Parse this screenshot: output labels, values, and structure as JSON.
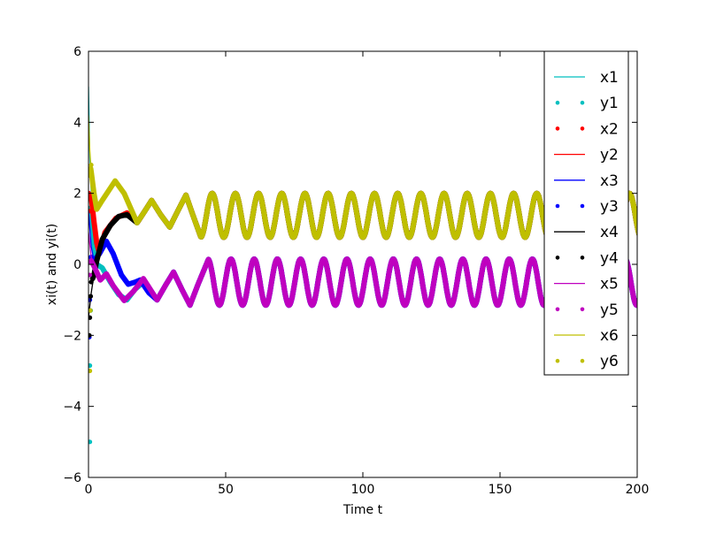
{
  "chart_data": {
    "type": "line",
    "title": "",
    "xlabel": "Time t",
    "ylabel": "xi(t) and yi(t)",
    "xlim": [
      0,
      200
    ],
    "ylim": [
      -6,
      6
    ],
    "xticks": [
      0,
      50,
      100,
      150,
      200
    ],
    "yticks": [
      -6,
      -4,
      -2,
      0,
      2,
      4,
      6
    ],
    "xtick_labels": [
      "0",
      "50",
      "100",
      "150",
      "200"
    ],
    "ytick_labels": [
      "−6",
      "−4",
      "−2",
      "0",
      "2",
      "4",
      "6"
    ],
    "grid": false,
    "legend_position": "top-right",
    "clusters": {
      "M": {
        "points": [
          [
            25,
            -1.0
          ],
          [
            28,
            -0.6
          ],
          [
            31,
            -0.22
          ],
          [
            34,
            -0.7
          ],
          [
            37,
            -1.15
          ],
          [
            40,
            -0.55
          ],
          [
            43.5,
            0.1
          ]
        ],
        "steady": {
          "mean": -0.5,
          "amplitude": 0.65,
          "period": 8.45,
          "peak_t": 43.5
        }
      },
      "Y": {
        "points": [
          [
            23,
            1.8
          ],
          [
            26.3,
            1.4
          ],
          [
            29.6,
            1.05
          ],
          [
            32.5,
            1.5
          ],
          [
            35.5,
            1.95
          ],
          [
            38,
            1.4
          ],
          [
            40.9,
            0.78
          ]
        ],
        "steady": {
          "mean": 1.38,
          "amplitude": 0.62,
          "period": 8.45,
          "peak_t": 45.1
        }
      }
    },
    "series": [
      {
        "name": "x1",
        "style": "line",
        "color": "#00bfbf",
        "cluster": "M",
        "points": [
          [
            0,
            5
          ],
          [
            0.5,
            3
          ],
          [
            1,
            2
          ],
          [
            2,
            0.8
          ],
          [
            3,
            0.1
          ],
          [
            5,
            -0.1
          ],
          [
            8,
            -0.5
          ],
          [
            11,
            -0.85
          ],
          [
            14,
            -1.0
          ],
          [
            17,
            -0.7
          ],
          [
            20,
            -0.5
          ],
          [
            25,
            -1.0
          ]
        ]
      },
      {
        "name": "y1",
        "style": "dots",
        "color": "#00bfbf",
        "cluster": "M",
        "initial": [
          [
            0.5,
            -5
          ],
          [
            0.5,
            -2.85
          ],
          [
            0.8,
            -1.3
          ]
        ],
        "points": [
          [
            1,
            1.6
          ],
          [
            2,
            0.6
          ],
          [
            3,
            0.0
          ],
          [
            5,
            -0.1
          ],
          [
            8,
            -0.5
          ],
          [
            11,
            -0.85
          ],
          [
            14,
            -1.0
          ],
          [
            17,
            -0.7
          ],
          [
            20,
            -0.5
          ],
          [
            25,
            -1.0
          ]
        ]
      },
      {
        "name": "x2",
        "style": "dots",
        "color": "#ff0000",
        "cluster": "Y",
        "initial": [
          [
            0.3,
            1.9
          ],
          [
            0.6,
            1.5
          ]
        ],
        "points": [
          [
            0,
            2
          ],
          [
            1,
            1.9
          ],
          [
            2,
            1.2
          ],
          [
            3,
            0.6
          ],
          [
            4,
            0.3
          ],
          [
            6,
            0.9
          ],
          [
            10,
            1.3
          ],
          [
            14,
            1.45
          ],
          [
            18,
            1.2
          ],
          [
            20.5,
            1.5
          ],
          [
            23,
            1.8
          ]
        ]
      },
      {
        "name": "y2",
        "style": "line",
        "color": "#ff0000",
        "cluster": "Y",
        "points": [
          [
            0,
            2
          ],
          [
            1,
            1.9
          ],
          [
            2,
            1.2
          ],
          [
            3,
            0.6
          ],
          [
            4,
            0.3
          ],
          [
            6,
            0.9
          ],
          [
            10,
            1.3
          ],
          [
            14,
            1.45
          ],
          [
            18,
            1.2
          ],
          [
            20.5,
            1.5
          ],
          [
            23,
            1.8
          ]
        ]
      },
      {
        "name": "x3",
        "style": "line",
        "color": "#0000ff",
        "cluster": "M",
        "points": [
          [
            0,
            1.5
          ],
          [
            1,
            0.5
          ],
          [
            2,
            0.1
          ],
          [
            4,
            0.3
          ],
          [
            6.5,
            0.65
          ],
          [
            9,
            0.3
          ],
          [
            12,
            -0.3
          ],
          [
            14.5,
            -0.56
          ],
          [
            17,
            -0.5
          ],
          [
            18.8,
            -0.44
          ],
          [
            22,
            -0.8
          ],
          [
            25,
            -1.0
          ]
        ]
      },
      {
        "name": "y3",
        "style": "dots",
        "color": "#0000ff",
        "cluster": "M",
        "initial": [
          [
            0.3,
            -2.05
          ],
          [
            0.5,
            -1.0
          ]
        ],
        "points": [
          [
            1,
            0.2
          ],
          [
            2,
            0.1
          ],
          [
            4,
            0.3
          ],
          [
            6.5,
            0.65
          ],
          [
            9,
            0.3
          ],
          [
            12,
            -0.3
          ],
          [
            14.5,
            -0.56
          ],
          [
            17,
            -0.5
          ],
          [
            18.8,
            -0.44
          ],
          [
            22,
            -0.8
          ],
          [
            25,
            -1.0
          ]
        ]
      },
      {
        "name": "x4",
        "style": "line",
        "color": "#000000",
        "cluster": "Y",
        "points": [
          [
            0,
            -1.5
          ],
          [
            1,
            -0.8
          ],
          [
            2,
            -0.3
          ],
          [
            3,
            0.1
          ],
          [
            5,
            0.7
          ],
          [
            8,
            1.1
          ],
          [
            11,
            1.35
          ],
          [
            14,
            1.4
          ],
          [
            17.7,
            1.17
          ],
          [
            20.5,
            1.5
          ],
          [
            23,
            1.8
          ]
        ]
      },
      {
        "name": "y4",
        "style": "dots",
        "color": "#000000",
        "cluster": "Y",
        "initial": [
          [
            0.3,
            -2.0
          ],
          [
            0.5,
            -1.5
          ],
          [
            0.8,
            -0.9
          ],
          [
            1,
            -0.5
          ]
        ],
        "points": [
          [
            1.5,
            -0.4
          ],
          [
            2,
            -0.3
          ],
          [
            3,
            0.1
          ],
          [
            5,
            0.7
          ],
          [
            8,
            1.1
          ],
          [
            11,
            1.35
          ],
          [
            14,
            1.4
          ],
          [
            17.7,
            1.17
          ],
          [
            20.5,
            1.5
          ],
          [
            23,
            1.8
          ]
        ]
      },
      {
        "name": "x5",
        "style": "line",
        "color": "#bf00bf",
        "cluster": "M",
        "points": [
          [
            0,
            0.9
          ],
          [
            1,
            0.2
          ],
          [
            2,
            -0.05
          ],
          [
            4.3,
            -0.44
          ],
          [
            6.5,
            -0.27
          ],
          [
            9,
            -0.6
          ],
          [
            13,
            -1.02
          ],
          [
            16.5,
            -0.75
          ],
          [
            20,
            -0.4
          ],
          [
            25,
            -1.0
          ]
        ]
      },
      {
        "name": "y5",
        "style": "dots",
        "color": "#bf00bf",
        "cluster": "M",
        "initial": [
          [
            0.3,
            0.05
          ],
          [
            0.5,
            -0.3
          ]
        ],
        "points": [
          [
            1,
            0.1
          ],
          [
            2,
            -0.05
          ],
          [
            4.3,
            -0.44
          ],
          [
            6.5,
            -0.27
          ],
          [
            9,
            -0.6
          ],
          [
            13,
            -1.02
          ],
          [
            16.5,
            -0.75
          ],
          [
            20,
            -0.4
          ],
          [
            25,
            -1.0
          ]
        ]
      },
      {
        "name": "x6",
        "style": "line",
        "color": "#bfbf00",
        "cluster": "Y",
        "points": [
          [
            0,
            4.2
          ],
          [
            0.5,
            3.2
          ],
          [
            1,
            2.6
          ],
          [
            2,
            2.0
          ],
          [
            3,
            1.55
          ],
          [
            5,
            1.8
          ],
          [
            9.7,
            2.35
          ],
          [
            13,
            2.0
          ],
          [
            17.7,
            1.17
          ],
          [
            20.5,
            1.5
          ],
          [
            23,
            1.8
          ]
        ]
      },
      {
        "name": "y6",
        "style": "dots",
        "color": "#bfbf00",
        "cluster": "Y",
        "initial": [
          [
            0.5,
            -3.0
          ],
          [
            0.7,
            -1.3
          ],
          [
            1,
            2.8
          ],
          [
            0.5,
            2.5
          ]
        ],
        "points": [
          [
            0.8,
            2.7
          ],
          [
            1,
            2.6
          ],
          [
            2,
            2.0
          ],
          [
            3,
            1.55
          ],
          [
            5,
            1.8
          ],
          [
            9.7,
            2.35
          ],
          [
            13,
            2.0
          ],
          [
            17.7,
            1.17
          ],
          [
            20.5,
            1.5
          ],
          [
            23,
            1.8
          ]
        ]
      }
    ]
  }
}
